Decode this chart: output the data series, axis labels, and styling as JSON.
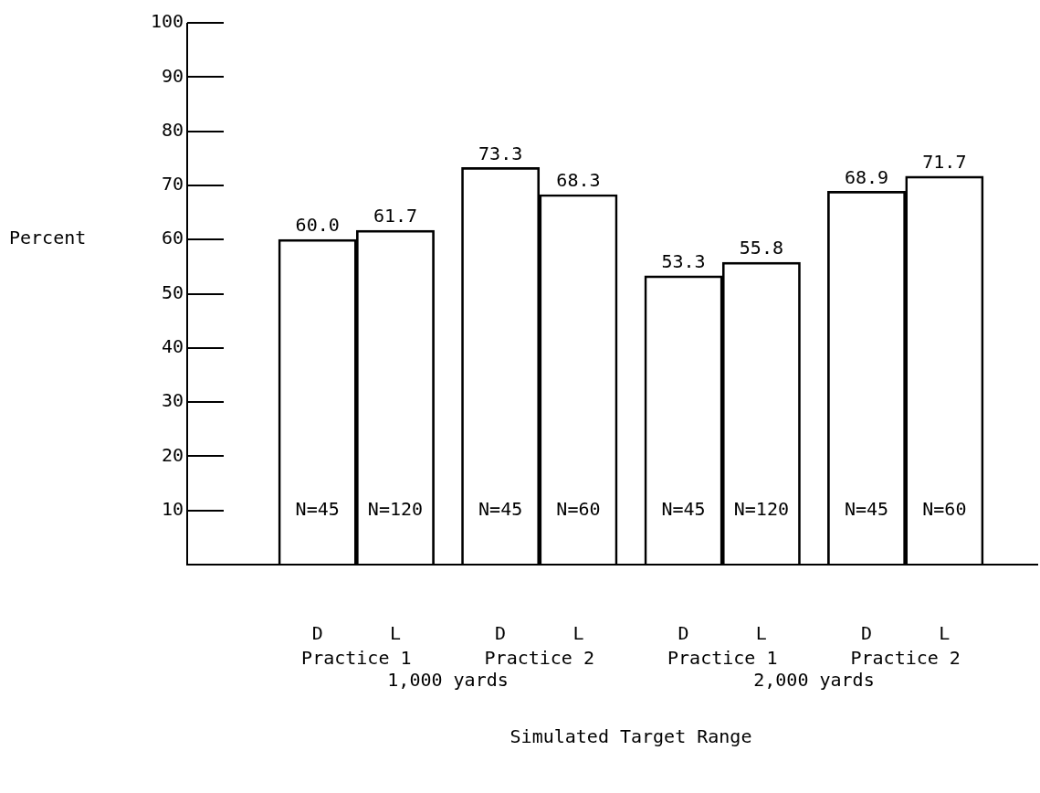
{
  "chart_data": {
    "type": "bar",
    "xlabel": "Simulated Target Range",
    "ylabel": "Percent",
    "categories": [
      "D",
      "L",
      "D",
      "L",
      "D",
      "L",
      "D",
      "L"
    ],
    "values": [
      60.0,
      61.7,
      73.3,
      68.3,
      53.3,
      55.8,
      68.9,
      71.7
    ],
    "value_labels": [
      "60.0",
      "61.7",
      "73.3",
      "68.3",
      "53.3",
      "55.8",
      "68.9",
      "71.7"
    ],
    "color": "#000000",
    "ylim": [
      0,
      100
    ],
    "yticks": [
      10,
      20,
      30,
      40,
      50,
      60,
      70,
      80,
      90,
      100
    ],
    "grid": false,
    "legend": false,
    "annotations": [
      "N=45",
      "N=120",
      "N=45",
      "N=60",
      "N=45",
      "N=120",
      "N=45",
      "N=60",
      "Practice 1",
      "Practice 2",
      "Practice 1",
      "Practice 2",
      "1,000 yards",
      "2,000 yards"
    ]
  }
}
